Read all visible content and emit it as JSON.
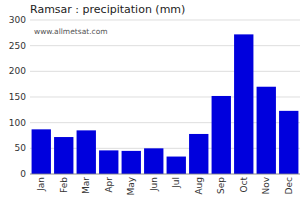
{
  "chart_data": {
    "type": "bar",
    "title": "Ramsar : precipitation (mm)",
    "categories": [
      "Jan",
      "Feb",
      "Mar",
      "Apr",
      "May",
      "Jun",
      "Jul",
      "Aug",
      "Sep",
      "Oct",
      "Nov",
      "Dec"
    ],
    "values": [
      87,
      72,
      85,
      46,
      45,
      50,
      34,
      78,
      152,
      272,
      170,
      123
    ],
    "color": "#0000dd",
    "ylim": [
      0,
      300
    ],
    "yticks": [
      0,
      50,
      100,
      150,
      200,
      250,
      300
    ],
    "grid": true,
    "annotation": "www.allmetsat.com"
  }
}
